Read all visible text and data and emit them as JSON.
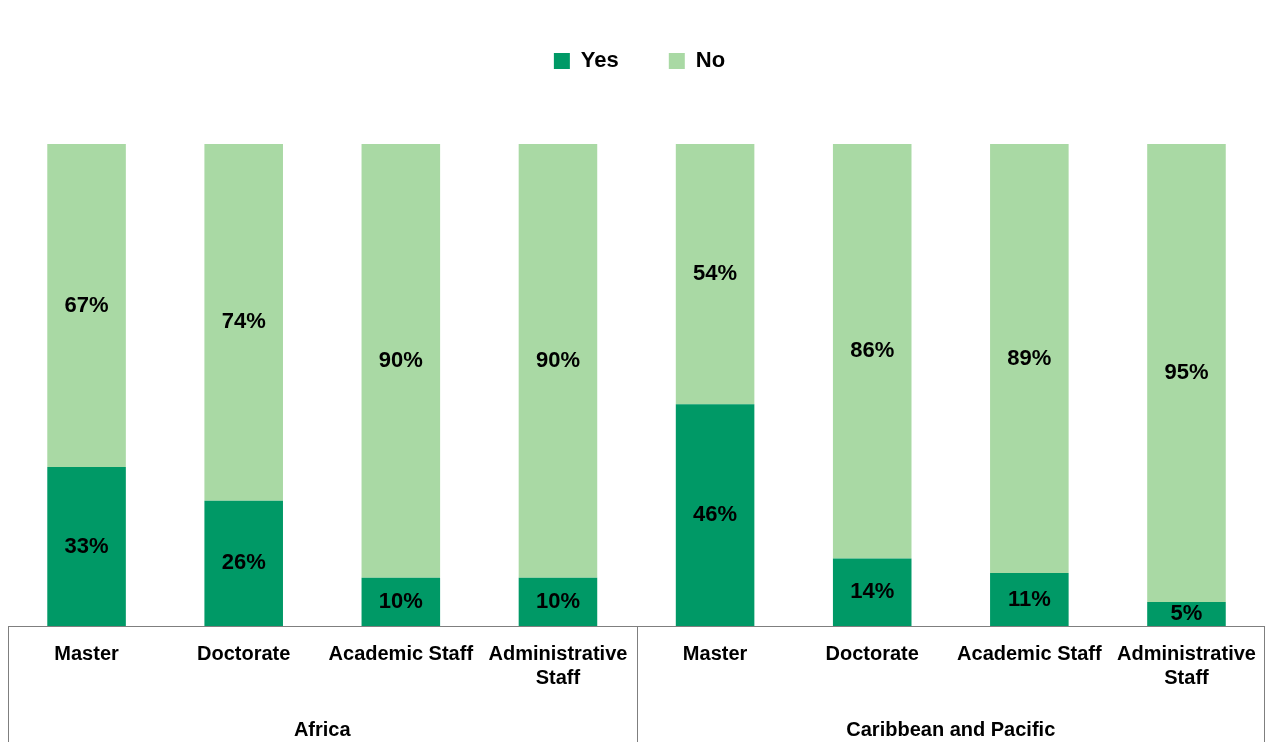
{
  "chart_data": {
    "type": "bar",
    "stacked": true,
    "categories": [
      "Master",
      "Doctorate",
      "Academic Staff",
      "Administrative Staff",
      "Master",
      "Doctorate",
      "Academic Staff",
      "Administrative Staff"
    ],
    "series": [
      {
        "name": "Yes",
        "color": "#009966",
        "values": [
          33,
          26,
          10,
          10,
          46,
          14,
          11,
          5
        ],
        "value_labels": [
          "33%",
          "26%",
          "10%",
          "10%",
          "46%",
          "14%",
          "11%",
          "5%"
        ]
      },
      {
        "name": "No",
        "color": "#a9d9a4",
        "values": [
          67,
          74,
          90,
          90,
          54,
          86,
          89,
          95
        ],
        "value_labels": [
          "67%",
          "74%",
          "90%",
          "90%",
          "54%",
          "86%",
          "89%",
          "95%"
        ]
      }
    ],
    "tick_labels": "x",
    "legend": "top",
    "grid": false,
    "annotations": [
      "Africa",
      "Caribbean and Pacific"
    ]
  }
}
